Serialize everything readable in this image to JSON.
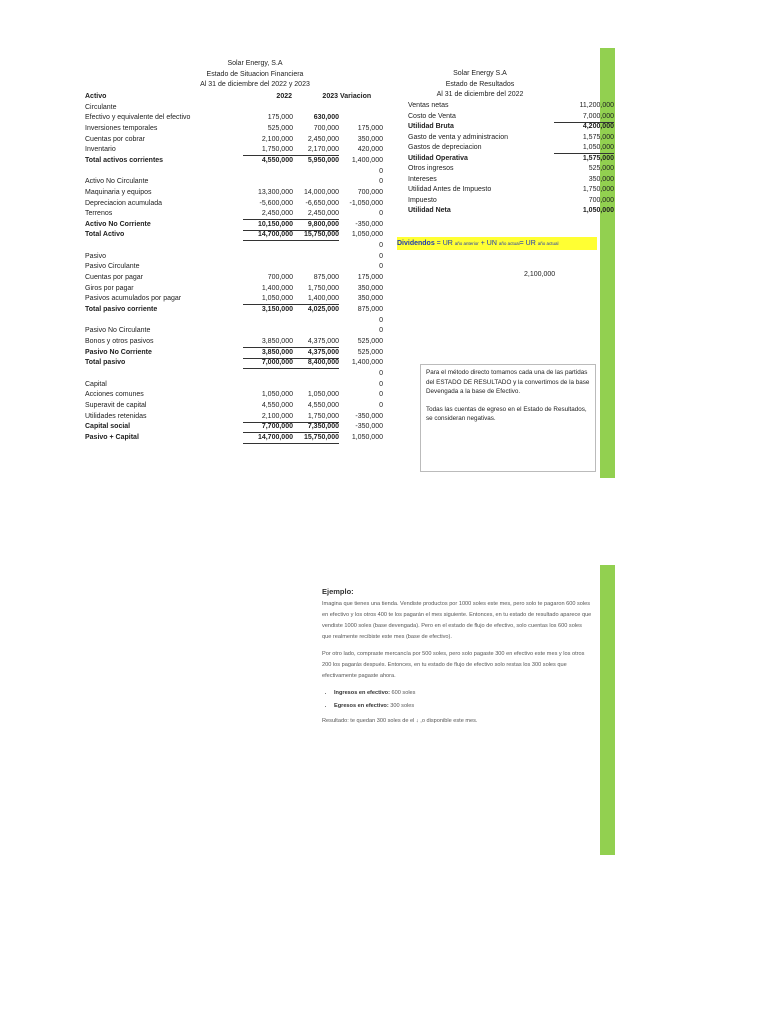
{
  "balance": {
    "title_lines": [
      "Solar Energy, S.A",
      "Estado de Situacion Financiera",
      "Al 31 de diciembre del 2022 y 2023"
    ],
    "header": {
      "label": "Activo",
      "y2022": "2022",
      "y2023": "2023",
      "var": "Variacion"
    },
    "rows": [
      {
        "label": "Circulante",
        "a": "",
        "b": "",
        "c": "",
        "bold": false
      },
      {
        "label": "Efectivo y equivalente del efectivo",
        "a": "175,000",
        "b": "630,000",
        "c": "",
        "bold": false,
        "bbold": true
      },
      {
        "label": "Inversiones temporales",
        "a": "525,000",
        "b": "700,000",
        "c": "175,000"
      },
      {
        "label": "Cuentas por cobrar",
        "a": "2,100,000",
        "b": "2,450,000",
        "c": "350,000"
      },
      {
        "label": "Inventario",
        "a": "1,750,000",
        "b": "2,170,000",
        "c": "420,000",
        "ul": true
      },
      {
        "label": "Total activos corrientes",
        "a": "4,550,000",
        "b": "5,950,000",
        "c": "1,400,000",
        "bold": true
      },
      {
        "label": "",
        "a": "",
        "b": "",
        "c": "0"
      },
      {
        "label": "Activo No Circulante",
        "a": "",
        "b": "",
        "c": "0"
      },
      {
        "label": "Maquinaria y equipos",
        "a": "13,300,000",
        "b": "14,000,000",
        "c": "700,000"
      },
      {
        "label": "Depreciacion acumulada",
        "a": "-5,600,000",
        "b": "-6,650,000",
        "c": "-1,050,000"
      },
      {
        "label": "Terrenos",
        "a": "2,450,000",
        "b": "2,450,000",
        "c": "0",
        "ul": true
      },
      {
        "label": "Activo No Corriente",
        "a": "10,150,000",
        "b": "9,800,000",
        "c": "-350,000",
        "bold": true,
        "ul": true
      },
      {
        "label": "Total Activo",
        "a": "14,700,000",
        "b": "15,750,000",
        "c": "1,050,000",
        "bold": true,
        "ul": true
      },
      {
        "label": "",
        "a": "",
        "b": "",
        "c": "0"
      },
      {
        "label": "Pasivo",
        "a": "",
        "b": "",
        "c": "0"
      },
      {
        "label": "Pasivo Circulante",
        "a": "",
        "b": "",
        "c": "0"
      },
      {
        "label": "Cuentas por pagar",
        "a": "700,000",
        "b": "875,000",
        "c": "175,000"
      },
      {
        "label": "Giros por pagar",
        "a": "1,400,000",
        "b": "1,750,000",
        "c": "350,000"
      },
      {
        "label": "Pasivos acumulados por pagar",
        "a": "1,050,000",
        "b": "1,400,000",
        "c": "350,000",
        "ul": true
      },
      {
        "label": "Total pasivo corriente",
        "a": "3,150,000",
        "b": "4,025,000",
        "c": "875,000",
        "bold": true
      },
      {
        "label": "",
        "a": "",
        "b": "",
        "c": "0"
      },
      {
        "label": "Pasivo No Circulante",
        "a": "",
        "b": "",
        "c": "0"
      },
      {
        "label": "Bonos y otros pasivos",
        "a": "3,850,000",
        "b": "4,375,000",
        "c": "525,000",
        "ul": true
      },
      {
        "label": "Pasivo No Corriente",
        "a": "3,850,000",
        "b": "4,375,000",
        "c": "525,000",
        "bold": true,
        "ul": true
      },
      {
        "label": "Total pasivo",
        "a": "7,000,000",
        "b": "8,400,000",
        "c": "1,400,000",
        "bold": true,
        "ul": true
      },
      {
        "label": "",
        "a": "",
        "b": "",
        "c": "0"
      },
      {
        "label": "Capital",
        "a": "",
        "b": "",
        "c": "0"
      },
      {
        "label": "Acciones comunes",
        "a": "1,050,000",
        "b": "1,050,000",
        "c": "0"
      },
      {
        "label": "Superavit de capital",
        "a": "4,550,000",
        "b": "4,550,000",
        "c": "0"
      },
      {
        "label": "Utilidades retenidas",
        "a": "2,100,000",
        "b": "1,750,000",
        "c": "-350,000",
        "ul": true
      },
      {
        "label": "Capital social",
        "a": "7,700,000",
        "b": "7,350,000",
        "c": "-350,000",
        "bold": true,
        "ul": true
      },
      {
        "label": "Pasivo + Capital",
        "a": "14,700,000",
        "b": "15,750,000",
        "c": "1,050,000",
        "bold": true,
        "ul": true
      }
    ]
  },
  "income": {
    "title_lines": [
      "Solar Energy S.A",
      "Estado de Resultados",
      "Al 31 de diciembre del 2022"
    ],
    "rows": [
      {
        "label": "Ventas netas",
        "v": "11,200,000"
      },
      {
        "label": "Costo de Venta",
        "v": "7,000,000",
        "ul": true
      },
      {
        "label": "Utilidad Bruta",
        "v": "4,200,000",
        "bold": true
      },
      {
        "label": "Gasto de venta y administracion",
        "v": "1,575,000"
      },
      {
        "label": "Gastos  de depreciacion",
        "v": "1,050,000",
        "ul": true
      },
      {
        "label": "Utilidad Operativa",
        "v": "1,575,000",
        "bold": true
      },
      {
        "label": "Otros ingresos",
        "v": "525,000"
      },
      {
        "label": "Intereses",
        "v": "350,000"
      },
      {
        "label": "Utilidad Antes de Impuesto",
        "v": "1,750,000"
      },
      {
        "label": "Impuesto",
        "v": "700,000"
      },
      {
        "label": "Utilidad Neta",
        "v": "1,050,000",
        "bold": true
      }
    ]
  },
  "dividends": {
    "label": "Dividendos",
    "eq1": " = UR ",
    "s1": "año anterior",
    "eq2": "  + UN ",
    "s2": "año actual",
    "eq3": "= UR ",
    "s3": "año actual"
  },
  "loose_value": "2,100,000",
  "note": {
    "p1": "Para el método directo tomamos cada una de las partidas del ESTADO DE RESULTADO y la convertimos de la base Devengada a la base de Efectivo.",
    "p2": "Todas las cuentas de egreso en el Estado de Resultados, se consideran negativas."
  },
  "example": {
    "title": "Ejemplo:",
    "p1": "Imagina que tienes una tienda. Vendiste productos por 1000 soles este mes, pero solo te pagaron 600 soles en efectivo y los otros 400 te los pagarán el mes siguiente. Entonces, en tu estado de resultado aparece que vendiste 1000 soles (base devengada). Pero en el estado de flujo de efectivo, solo cuentas los 600 soles que realmente recibiste este mes (base de efectivo).",
    "p2": "Por otro lado, compraste mercancía por 500 soles, pero solo pagaste 300 en efectivo este mes y los otros 200 los pagarás después. Entonces, en tu estado de flujo de efectivo solo restas los 300 soles que efectivamente pagaste ahora.",
    "b1_label": "Ingresos en efectivo:",
    "b1_value": " 600 soles",
    "b2_label": "Egresos en efectivo:",
    "b2_value": " 300 soles",
    "result": "Resultado: te quedan 300 soles de el ↓ ,o disponible este mes."
  },
  "colors": {
    "accent_bar": "#92d050",
    "highlight": "#ffff33"
  }
}
